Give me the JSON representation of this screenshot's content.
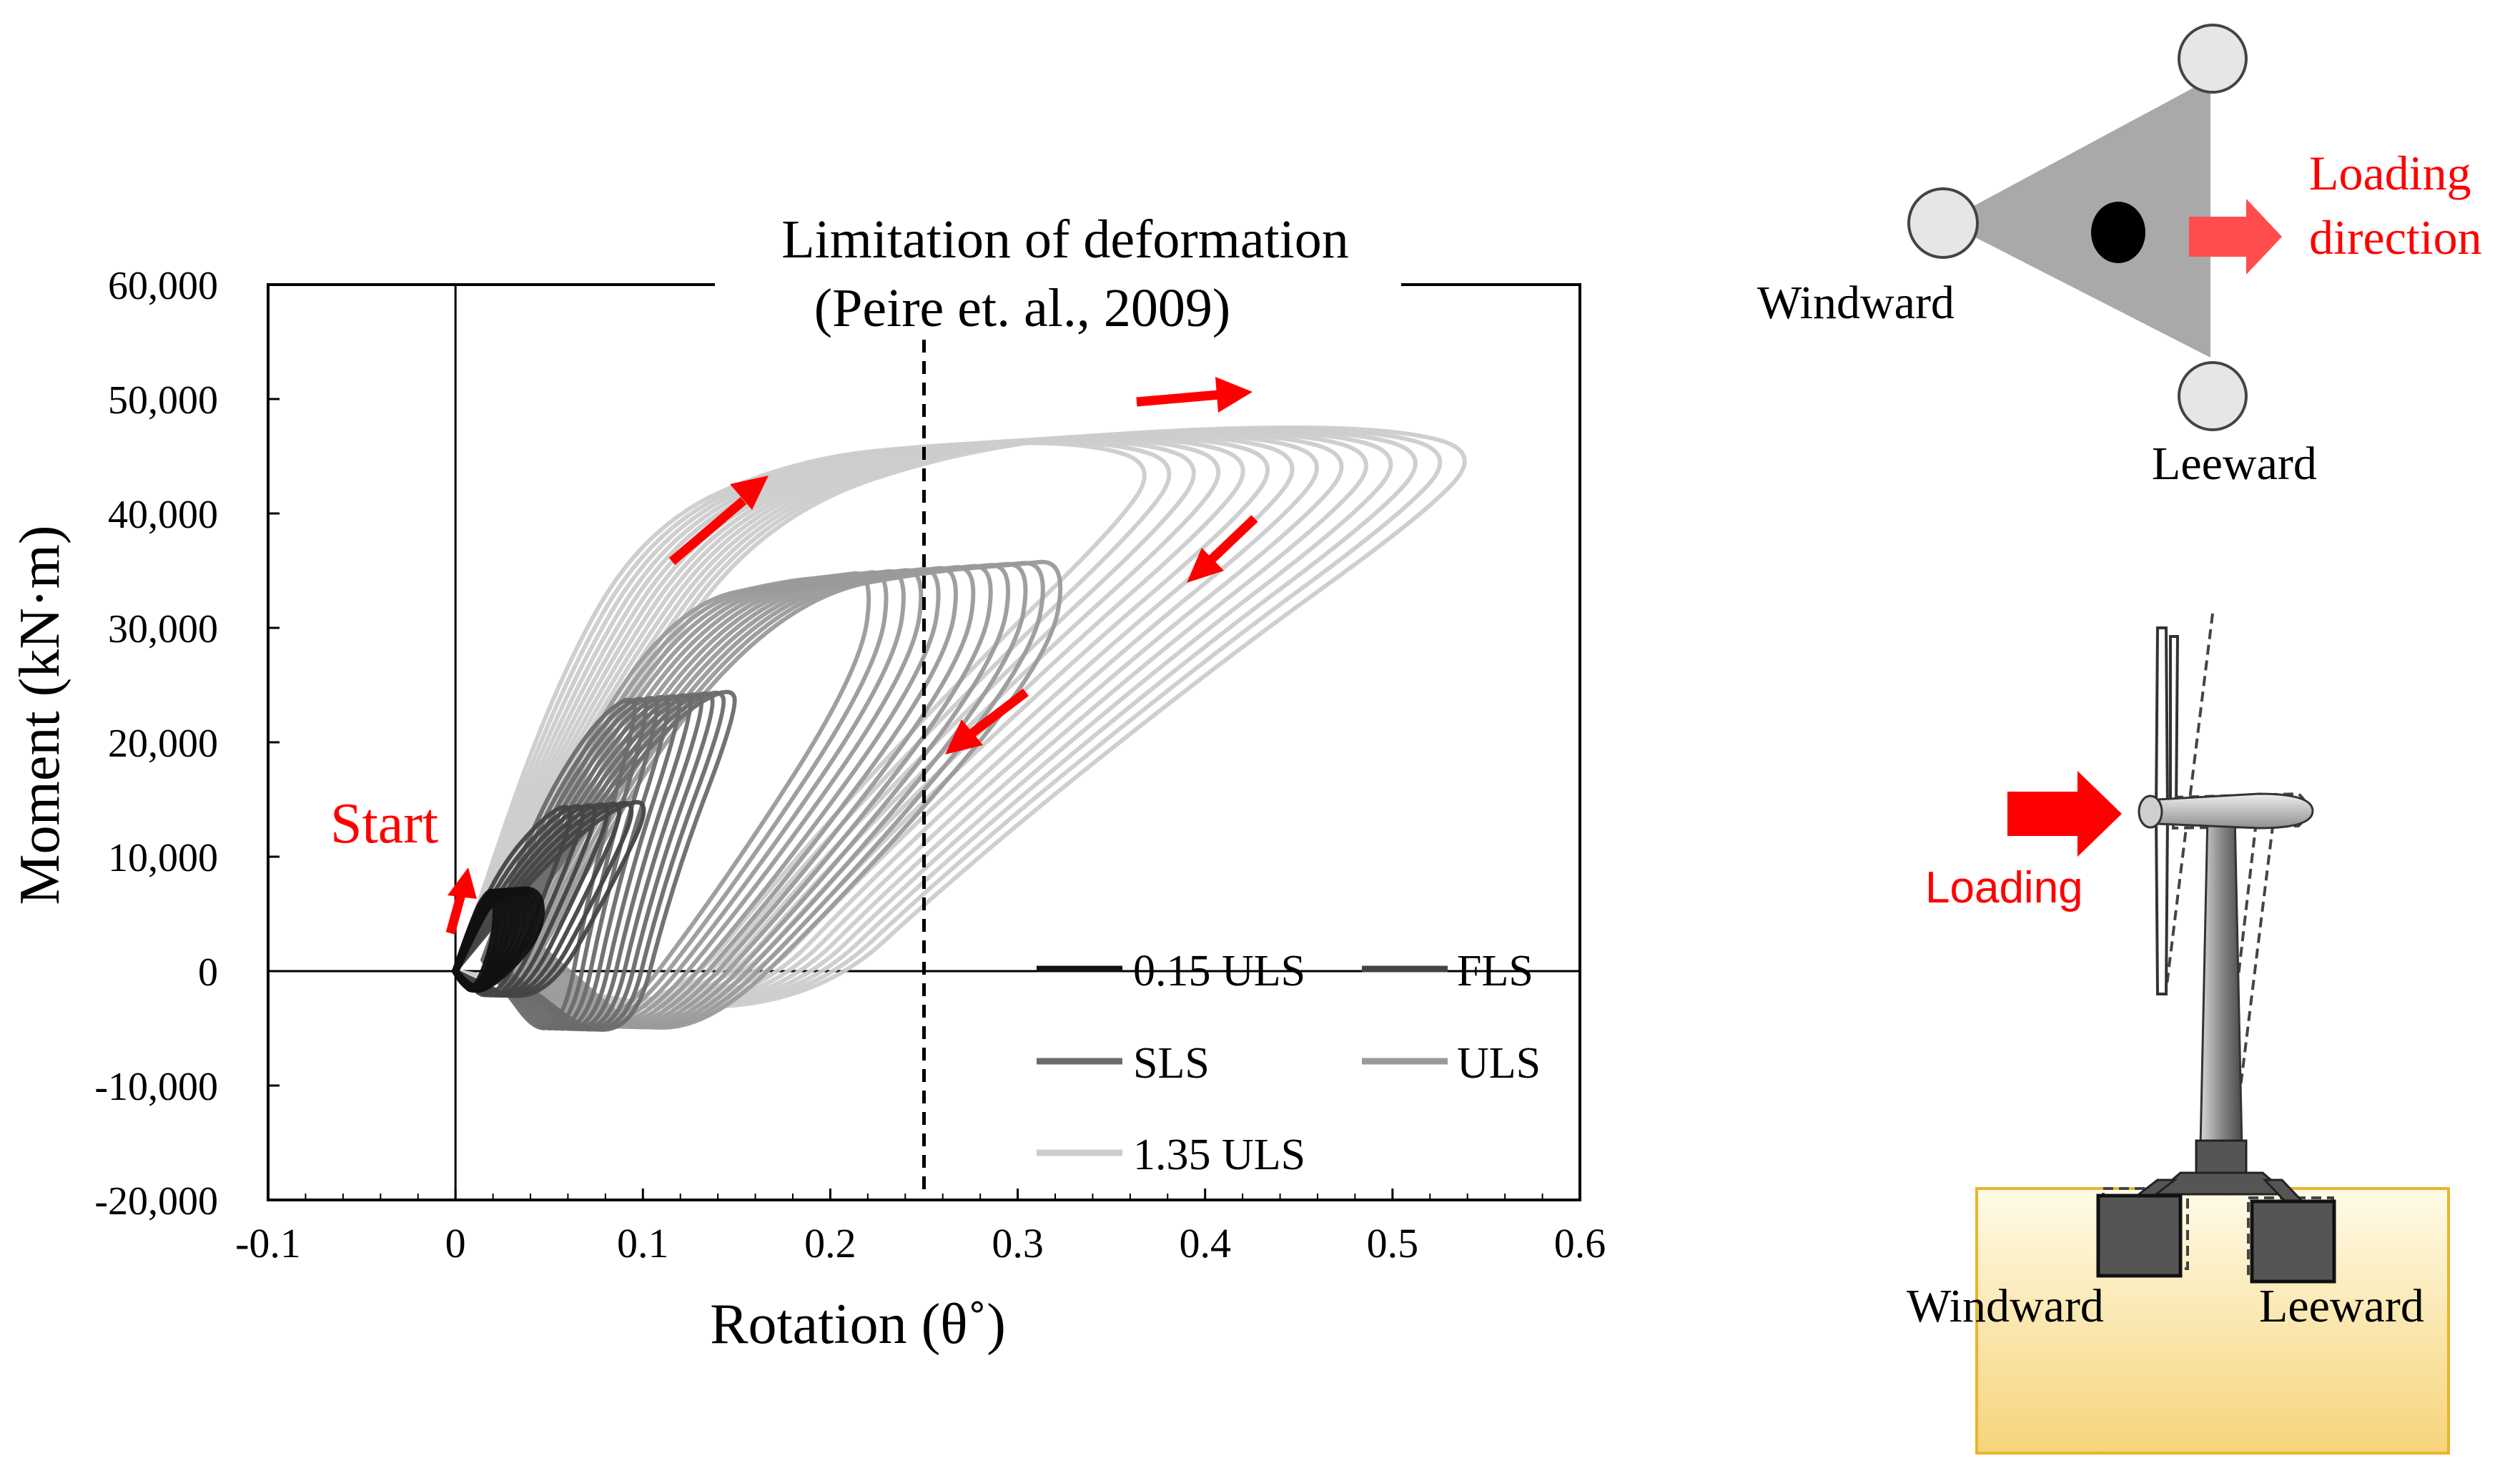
{
  "chart_data": {
    "type": "line",
    "title": "",
    "xlabel": "Rotation (θ˚)",
    "ylabel": "Moment (kN·m)",
    "xlim": [
      -0.1,
      0.6
    ],
    "ylim": [
      -20000,
      60000
    ],
    "x_ticks": [
      -0.1,
      0,
      0.1,
      0.2,
      0.3,
      0.4,
      0.5,
      0.6
    ],
    "x_tick_labels": [
      "-0.1",
      "0",
      "0.1",
      "0.2",
      "0.3",
      "0.4",
      "0.5",
      "0.6"
    ],
    "y_ticks": [
      -20000,
      -10000,
      0,
      10000,
      20000,
      30000,
      40000,
      50000,
      60000
    ],
    "y_tick_labels": [
      "-20,000",
      "-10,000",
      "0",
      "10,000",
      "20,000",
      "30,000",
      "40,000",
      "50,000",
      "60,000"
    ],
    "series": [
      {
        "name": "0.15 ULS",
        "color": "#111111",
        "envelope": [
          [
            0.0,
            0
          ],
          [
            0.01,
            3500
          ],
          [
            0.02,
            6500
          ],
          [
            0.03,
            7500
          ],
          [
            0.03,
            3000
          ],
          [
            0.015,
            -2000
          ],
          [
            0.005,
            -1000
          ],
          [
            0.0,
            0
          ]
        ]
      },
      {
        "name": "FLS",
        "color": "#444444",
        "envelope": [
          [
            0.0,
            0
          ],
          [
            0.03,
            9000
          ],
          [
            0.07,
            14500
          ],
          [
            0.09,
            15000
          ],
          [
            0.07,
            8000
          ],
          [
            0.03,
            -3500
          ],
          [
            0.0,
            0
          ]
        ]
      },
      {
        "name": "SLS",
        "color": "#6b6b6b",
        "envelope": [
          [
            0.02,
            1000
          ],
          [
            0.06,
            14000
          ],
          [
            0.1,
            22000
          ],
          [
            0.13,
            25000
          ],
          [
            0.135,
            23000
          ],
          [
            0.1,
            8000
          ],
          [
            0.075,
            -8000
          ],
          [
            0.02,
            1000
          ]
        ]
      },
      {
        "name": "ULS",
        "color": "#9a9a9a",
        "envelope": [
          [
            0.03,
            2000
          ],
          [
            0.1,
            22000
          ],
          [
            0.17,
            33000
          ],
          [
            0.24,
            35000
          ],
          [
            0.28,
            35500
          ],
          [
            0.31,
            36000
          ],
          [
            0.3,
            27000
          ],
          [
            0.2,
            8000
          ],
          [
            0.1,
            -8000
          ],
          [
            0.03,
            2000
          ]
        ]
      },
      {
        "name": "1.35 ULS",
        "color": "#cccccc",
        "envelope": [
          [
            0.0,
            0
          ],
          [
            0.07,
            25000
          ],
          [
            0.14,
            40000
          ],
          [
            0.25,
            46000
          ],
          [
            0.37,
            47500
          ],
          [
            0.47,
            47500
          ],
          [
            0.52,
            45500
          ],
          [
            0.49,
            40000
          ],
          [
            0.38,
            27000
          ],
          [
            0.25,
            10000
          ],
          [
            0.15,
            -5000
          ],
          [
            0.0,
            0
          ]
        ]
      }
    ],
    "annotations": {
      "limit_line_x": 0.25,
      "limit_line_label_1": "Limitation of deformation",
      "limit_line_label_2": "(Peire et. al., 2009)",
      "start_label": "Start"
    },
    "legend_position": "bottom-right",
    "grid": false
  },
  "diagram_top": {
    "left_label": "Windward",
    "bottom_label": "Leeward",
    "arrow_label_1": "Loading",
    "arrow_label_2": "direction"
  },
  "diagram_bottom": {
    "loading_label": "Loading",
    "left_label": "Windward",
    "right_label": "Leeward"
  },
  "colors": {
    "annotation_red": "#ff0000",
    "soil_top": "#fffbe8",
    "soil_bottom": "#f6d47a",
    "triangle_fill": "#a9a9a9"
  }
}
